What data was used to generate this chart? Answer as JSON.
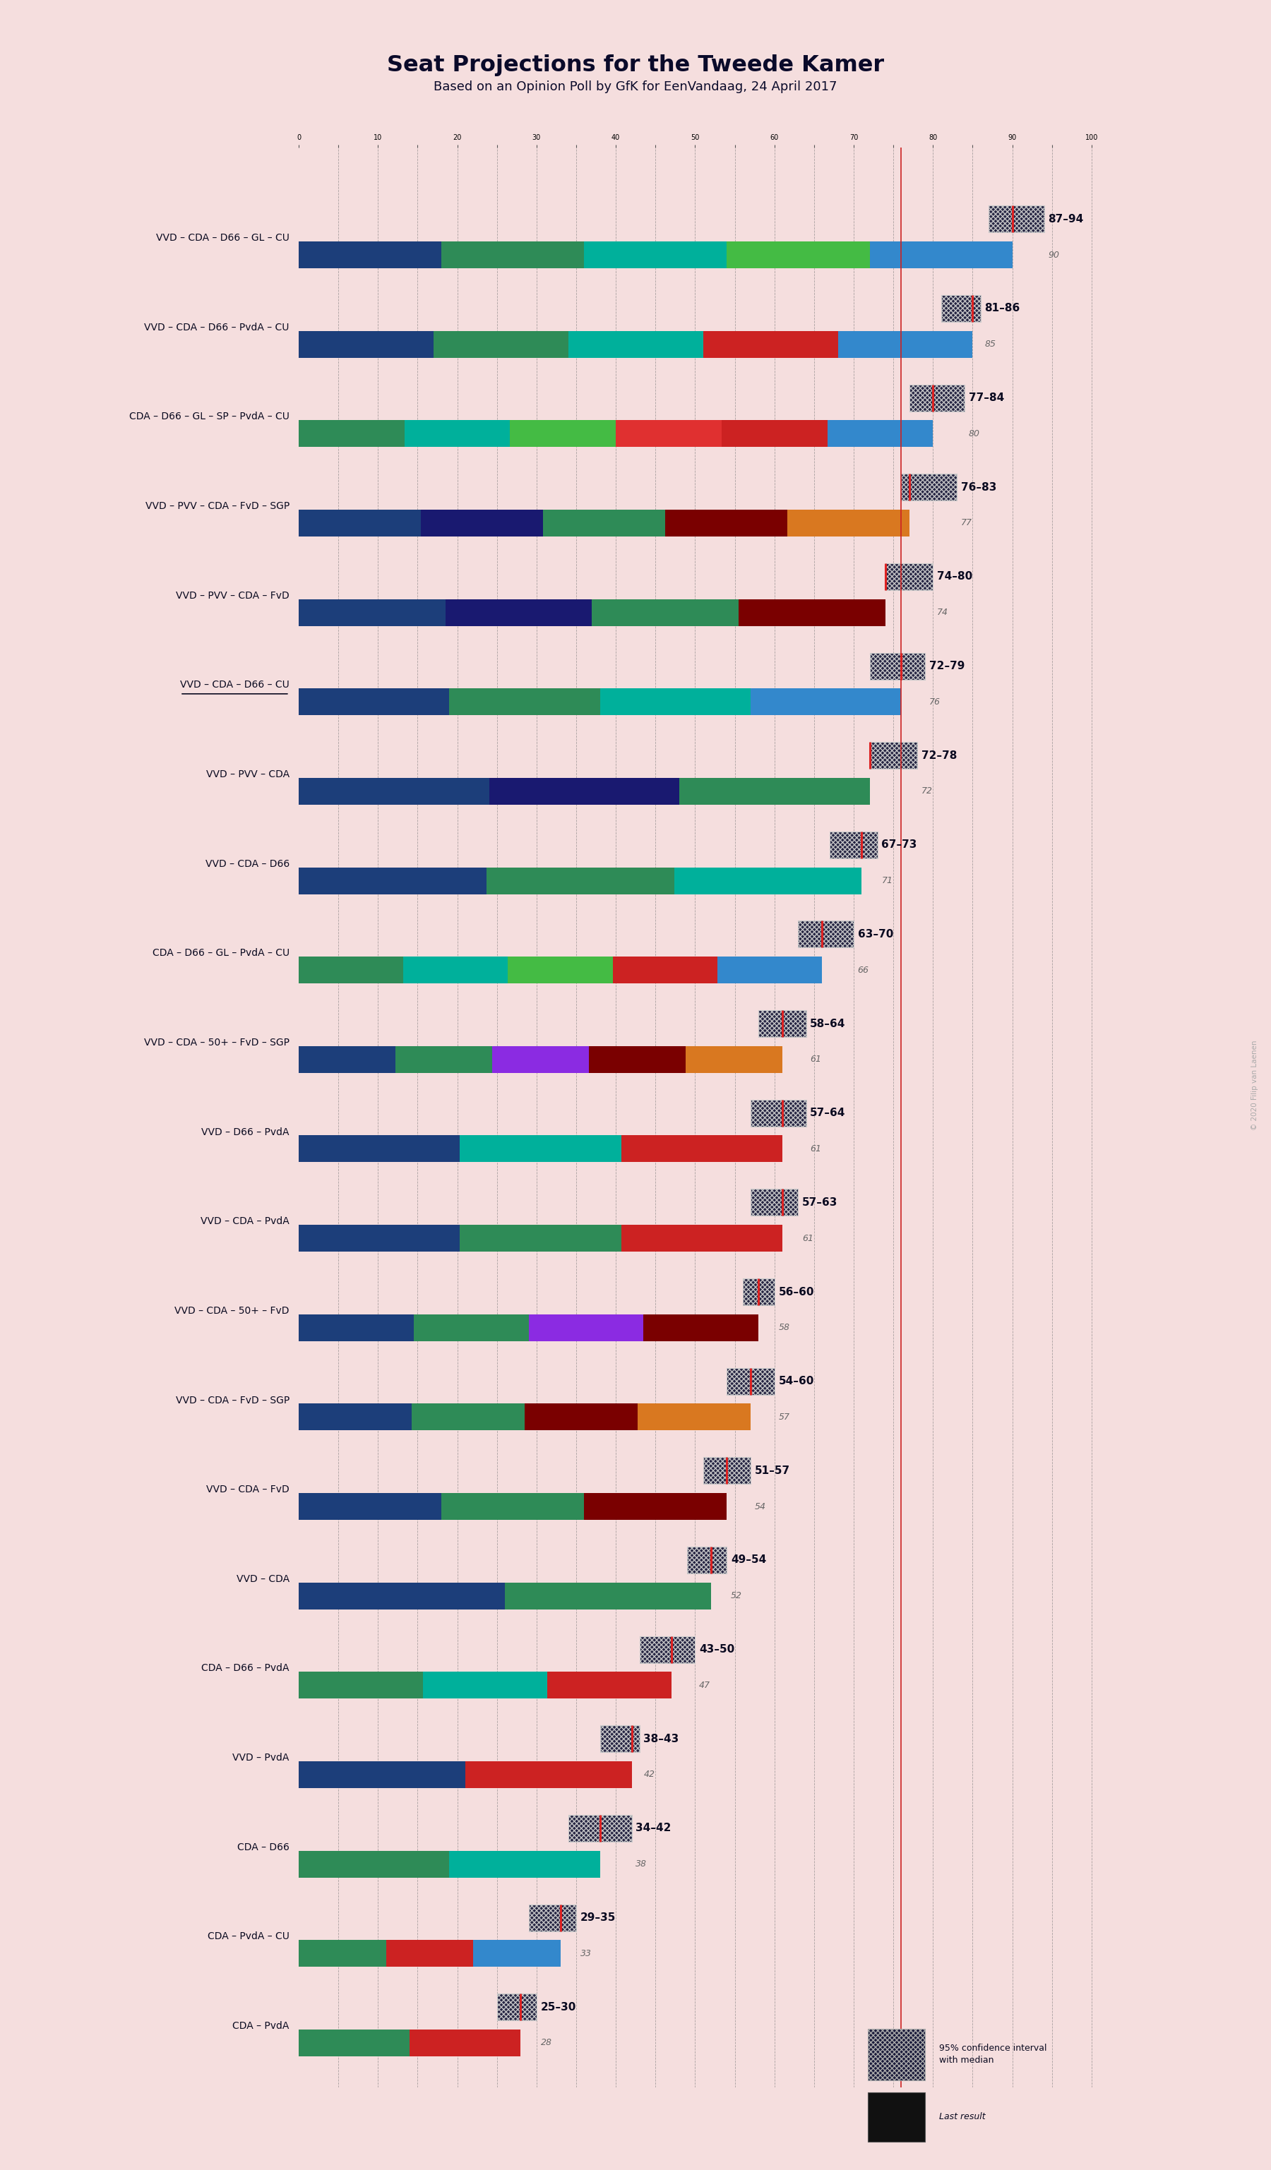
{
  "title": "Seat Projections for the Tweede Kamer",
  "subtitle": "Based on an Opinion Poll by GfK for EenVandaag, 24 April 2017",
  "background_color": "#f5dede",
  "coalitions": [
    {
      "name": "VVD – CDA – D66 – GL – CU",
      "parties": [
        "VVD",
        "CDA",
        "D66",
        "GL",
        "CU"
      ],
      "low": 87,
      "high": 94,
      "median": 90,
      "underline": false
    },
    {
      "name": "VVD – CDA – D66 – PvdA – CU",
      "parties": [
        "VVD",
        "CDA",
        "D66",
        "PvdA",
        "CU"
      ],
      "low": 81,
      "high": 86,
      "median": 85,
      "underline": false
    },
    {
      "name": "CDA – D66 – GL – SP – PvdA – CU",
      "parties": [
        "CDA",
        "D66",
        "GL",
        "SP",
        "PvdA",
        "CU"
      ],
      "low": 77,
      "high": 84,
      "median": 80,
      "underline": false
    },
    {
      "name": "VVD – PVV – CDA – FvD – SGP",
      "parties": [
        "VVD",
        "PVV",
        "CDA",
        "FvD",
        "SGP"
      ],
      "low": 76,
      "high": 83,
      "median": 77,
      "underline": false
    },
    {
      "name": "VVD – PVV – CDA – FvD",
      "parties": [
        "VVD",
        "PVV",
        "CDA",
        "FvD"
      ],
      "low": 74,
      "high": 80,
      "median": 74,
      "underline": false
    },
    {
      "name": "VVD – CDA – D66 – CU",
      "parties": [
        "VVD",
        "CDA",
        "D66",
        "CU"
      ],
      "low": 72,
      "high": 79,
      "median": 76,
      "underline": true
    },
    {
      "name": "VVD – PVV – CDA",
      "parties": [
        "VVD",
        "PVV",
        "CDA"
      ],
      "low": 72,
      "high": 78,
      "median": 72,
      "underline": false
    },
    {
      "name": "VVD – CDA – D66",
      "parties": [
        "VVD",
        "CDA",
        "D66"
      ],
      "low": 67,
      "high": 73,
      "median": 71,
      "underline": false
    },
    {
      "name": "CDA – D66 – GL – PvdA – CU",
      "parties": [
        "CDA",
        "D66",
        "GL",
        "PvdA",
        "CU"
      ],
      "low": 63,
      "high": 70,
      "median": 66,
      "underline": false
    },
    {
      "name": "VVD – CDA – 50+ – FvD – SGP",
      "parties": [
        "VVD",
        "CDA",
        "50+",
        "FvD",
        "SGP"
      ],
      "low": 58,
      "high": 64,
      "median": 61,
      "underline": false
    },
    {
      "name": "VVD – D66 – PvdA",
      "parties": [
        "VVD",
        "D66",
        "PvdA"
      ],
      "low": 57,
      "high": 64,
      "median": 61,
      "underline": false
    },
    {
      "name": "VVD – CDA – PvdA",
      "parties": [
        "VVD",
        "CDA",
        "PvdA"
      ],
      "low": 57,
      "high": 63,
      "median": 61,
      "underline": false
    },
    {
      "name": "VVD – CDA – 50+ – FvD",
      "parties": [
        "VVD",
        "CDA",
        "50+",
        "FvD"
      ],
      "low": 56,
      "high": 60,
      "median": 58,
      "underline": false
    },
    {
      "name": "VVD – CDA – FvD – SGP",
      "parties": [
        "VVD",
        "CDA",
        "FvD",
        "SGP"
      ],
      "low": 54,
      "high": 60,
      "median": 57,
      "underline": false
    },
    {
      "name": "VVD – CDA – FvD",
      "parties": [
        "VVD",
        "CDA",
        "FvD"
      ],
      "low": 51,
      "high": 57,
      "median": 54,
      "underline": false
    },
    {
      "name": "VVD – CDA",
      "parties": [
        "VVD",
        "CDA"
      ],
      "low": 49,
      "high": 54,
      "median": 52,
      "underline": false
    },
    {
      "name": "CDA – D66 – PvdA",
      "parties": [
        "CDA",
        "D66",
        "PvdA"
      ],
      "low": 43,
      "high": 50,
      "median": 47,
      "underline": false
    },
    {
      "name": "VVD – PvdA",
      "parties": [
        "VVD",
        "PvdA"
      ],
      "low": 38,
      "high": 43,
      "median": 42,
      "underline": false
    },
    {
      "name": "CDA – D66",
      "parties": [
        "CDA",
        "D66"
      ],
      "low": 34,
      "high": 42,
      "median": 38,
      "underline": false
    },
    {
      "name": "CDA – PvdA – CU",
      "parties": [
        "CDA",
        "PvdA",
        "CU"
      ],
      "low": 29,
      "high": 35,
      "median": 33,
      "underline": false
    },
    {
      "name": "CDA – PvdA",
      "parties": [
        "CDA",
        "PvdA"
      ],
      "low": 25,
      "high": 30,
      "median": 28,
      "underline": false
    }
  ],
  "party_colors": {
    "VVD": "#1c3e7a",
    "CDA": "#2e8b57",
    "D66": "#00b09b",
    "GL": "#44bb44",
    "PVV": "#191970",
    "PvdA": "#cc2222",
    "SP": "#e03030",
    "FvD": "#7a0000",
    "SGP": "#d97820",
    "50+": "#8b2be2",
    "CU": "#3388cc"
  },
  "majority_line": 76,
  "x_max": 100,
  "hatched_color": "#1a1a3a",
  "median_line_color": "#dd2222",
  "copyright_text": "© 2020 Filip van Laenen"
}
